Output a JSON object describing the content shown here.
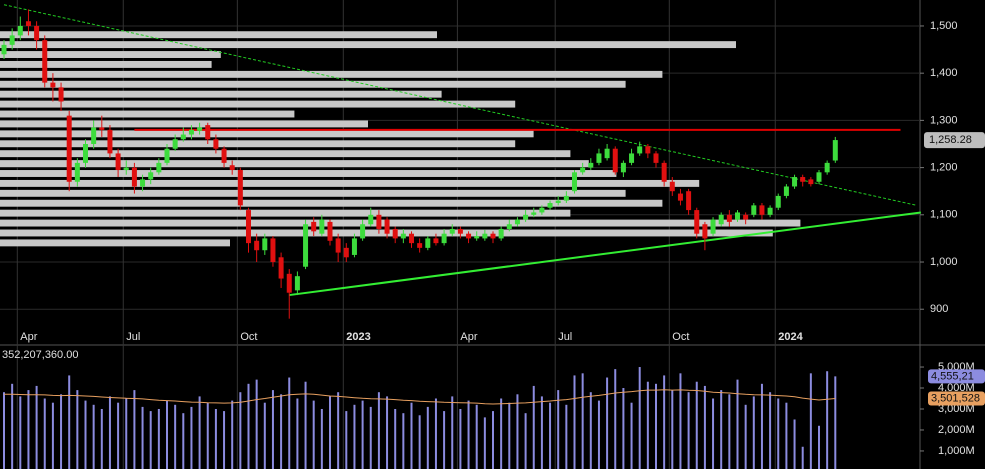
{
  "chart_data": [
    {
      "type": "candlestick",
      "categories": [
        null,
        null,
        "Apr",
        null,
        null,
        null,
        null,
        null,
        null,
        null,
        null,
        null,
        null,
        null,
        null,
        "Jul",
        null,
        null,
        null,
        null,
        null,
        null,
        null,
        null,
        null,
        null,
        null,
        null,
        null,
        "Oct",
        null,
        null,
        null,
        null,
        null,
        null,
        null,
        null,
        null,
        null,
        null,
        null,
        "2023",
        null,
        null,
        null,
        null,
        null,
        null,
        null,
        null,
        null,
        null,
        null,
        null,
        null,
        "Apr",
        null,
        null,
        null,
        null,
        null,
        null,
        null,
        null,
        null,
        null,
        null,
        "Jul",
        null,
        null,
        null,
        null,
        null,
        null,
        null,
        null,
        null,
        null,
        null,
        null,
        null,
        "Oct",
        null,
        null,
        null,
        null,
        null,
        null,
        null,
        null,
        null,
        null,
        null,
        null,
        "2024",
        null,
        null,
        null,
        null,
        null,
        null,
        null
      ],
      "open": [
        1440,
        1460,
        1480,
        1510,
        1500,
        1470,
        1380,
        1370,
        1310,
        1170,
        1210,
        1250,
        1285,
        1280,
        1230,
        1195,
        1200,
        1160,
        1175,
        1190,
        1210,
        1240,
        1260,
        1270,
        1278,
        1290,
        1260,
        1240,
        1205,
        1195,
        1110,
        1045,
        1025,
        1050,
        1010,
        975,
        940,
        990,
        1085,
        1060,
        1085,
        1050,
        1030,
        1015,
        1050,
        1080,
        1100,
        1090,
        1070,
        1050,
        1060,
        1040,
        1030,
        1050,
        1040,
        1060,
        1070,
        1060,
        1050,
        1050,
        1060,
        1050,
        1070,
        1080,
        1090,
        1100,
        1105,
        1115,
        1125,
        1130,
        1150,
        1190,
        1200,
        1210,
        1220,
        1240,
        1190,
        1210,
        1230,
        1245,
        1230,
        1210,
        1170,
        1145,
        1150,
        1110,
        1080,
        1060,
        1080,
        1100,
        1090,
        1100,
        1100,
        1120,
        1100,
        1115,
        1140,
        1160,
        1180,
        1175,
        1170,
        1190,
        1215
      ],
      "high": [
        1470,
        1495,
        1520,
        1535,
        1510,
        1480,
        1400,
        1380,
        1320,
        1220,
        1260,
        1300,
        1310,
        1290,
        1240,
        1215,
        1210,
        1185,
        1200,
        1220,
        1250,
        1270,
        1285,
        1290,
        1295,
        1295,
        1270,
        1245,
        1215,
        1200,
        1115,
        1060,
        1060,
        1055,
        1020,
        985,
        980,
        1090,
        1095,
        1100,
        1090,
        1060,
        1040,
        1060,
        1090,
        1115,
        1110,
        1095,
        1075,
        1070,
        1065,
        1050,
        1055,
        1060,
        1070,
        1080,
        1075,
        1065,
        1065,
        1068,
        1065,
        1075,
        1090,
        1095,
        1110,
        1115,
        1120,
        1130,
        1140,
        1150,
        1195,
        1210,
        1220,
        1240,
        1250,
        1245,
        1215,
        1240,
        1255,
        1250,
        1235,
        1215,
        1180,
        1155,
        1155,
        1115,
        1085,
        1095,
        1105,
        1110,
        1110,
        1105,
        1125,
        1125,
        1120,
        1145,
        1165,
        1185,
        1185,
        1180,
        1195,
        1215,
        1265
      ],
      "low": [
        1430,
        1450,
        1470,
        1480,
        1450,
        1370,
        1340,
        1320,
        1150,
        1160,
        1200,
        1240,
        1265,
        1220,
        1180,
        1185,
        1145,
        1150,
        1165,
        1185,
        1205,
        1235,
        1255,
        1260,
        1270,
        1250,
        1230,
        1200,
        1185,
        1110,
        1020,
        1000,
        1015,
        990,
        945,
        880,
        930,
        985,
        1055,
        1055,
        1035,
        1000,
        1000,
        1010,
        1045,
        1075,
        1060,
        1050,
        1040,
        1040,
        1030,
        1020,
        1025,
        1035,
        1035,
        1055,
        1050,
        1040,
        1045,
        1045,
        1040,
        1045,
        1065,
        1075,
        1085,
        1095,
        1100,
        1110,
        1120,
        1125,
        1145,
        1185,
        1195,
        1205,
        1215,
        1185,
        1180,
        1205,
        1225,
        1220,
        1200,
        1160,
        1140,
        1120,
        1100,
        1050,
        1025,
        1055,
        1075,
        1075,
        1085,
        1080,
        1095,
        1090,
        1095,
        1110,
        1135,
        1155,
        1160,
        1160,
        1165,
        1185,
        1210
      ],
      "close": [
        1460,
        1480,
        1500,
        1500,
        1470,
        1380,
        1370,
        1340,
        1170,
        1210,
        1250,
        1285,
        1280,
        1230,
        1195,
        1200,
        1160,
        1175,
        1190,
        1210,
        1240,
        1260,
        1270,
        1280,
        1285,
        1260,
        1240,
        1210,
        1195,
        1120,
        1040,
        1025,
        1050,
        1000,
        965,
        935,
        970,
        1080,
        1065,
        1090,
        1045,
        1020,
        1010,
        1050,
        1080,
        1100,
        1070,
        1060,
        1050,
        1060,
        1040,
        1030,
        1050,
        1040,
        1060,
        1070,
        1060,
        1050,
        1055,
        1060,
        1050,
        1070,
        1080,
        1090,
        1100,
        1105,
        1115,
        1125,
        1130,
        1140,
        1190,
        1200,
        1210,
        1230,
        1240,
        1190,
        1210,
        1230,
        1245,
        1230,
        1210,
        1170,
        1150,
        1130,
        1110,
        1060,
        1050,
        1090,
        1100,
        1085,
        1105,
        1090,
        1120,
        1100,
        1115,
        1140,
        1160,
        1180,
        1170,
        1165,
        1190,
        1210,
        1258.28
      ],
      "last_label": "1,258.28",
      "color_up": "#3ddc3d",
      "color_down": "#e01010",
      "ylim": [
        856,
        1555
      ],
      "yticks": [
        900,
        {
          "value": 1000,
          "label": "1,000"
        },
        {
          "value": 1100,
          "label": "1,100"
        },
        {
          "value": 1200,
          "label": "1,200"
        },
        {
          "value": 1300,
          "label": "1,300"
        },
        {
          "value": 1400,
          "label": "1,400"
        },
        {
          "value": 1500,
          "label": "1,500"
        }
      ],
      "grid": true,
      "volume_profile": {
        "bins": [
          1030,
          1051,
          1072,
          1093,
          1114,
          1135,
          1156,
          1177,
          1198,
          1219,
          1240,
          1261,
          1282,
          1303,
          1324,
          1345,
          1366,
          1387,
          1408,
          1429,
          1450,
          1471,
          1492
        ],
        "values": [
          250,
          840,
          870,
          620,
          720,
          680,
          760,
          670,
          640,
          620,
          560,
          580,
          400,
          320,
          560,
          480,
          680,
          720,
          230,
          240,
          800,
          475
        ],
        "xlim": [
          0,
          1000
        ],
        "color": "#c8c8c8"
      },
      "lines": [
        {
          "x": [
            0,
            112
          ],
          "y": [
            1545,
            1120
          ],
          "color": "#22cc22",
          "dash": true
        },
        {
          "x": [
            16,
            110
          ],
          "y": [
            1280,
            1280
          ],
          "color": "#e00000",
          "dash": false
        },
        {
          "x": [
            35,
            112.5
          ],
          "y": [
            930,
            1105
          ],
          "color": "#33ee33",
          "dash": false
        }
      ]
    },
    {
      "type": "bar",
      "title": "352,207,360.00",
      "ylim": [
        140,
        6050
      ],
      "yticks": [
        {
          "value": 1000,
          "label": "1,000M"
        },
        {
          "value": 2000,
          "label": "2,000M"
        },
        {
          "value": 3000,
          "label": "3,000M"
        },
        {
          "value": 4000,
          "label": "4,000M"
        },
        {
          "value": 5000,
          "label": "5,000M"
        }
      ],
      "series": [
        {
          "type": "bar",
          "color": "#8c8ce0",
          "last_label": "4,555,21",
          "values": [
            3800,
            4200,
            3600,
            3900,
            4100,
            3500,
            3300,
            3700,
            4600,
            3900,
            3400,
            3200,
            3000,
            3600,
            3300,
            3500,
            3900,
            3100,
            2900,
            3000,
            3400,
            3200,
            2800,
            3100,
            3600,
            3300,
            3000,
            2900,
            3400,
            3800,
            4200,
            4400,
            3300,
            3900,
            3700,
            4500,
            3500,
            4300,
            3400,
            3000,
            3600,
            3800,
            2900,
            3200,
            3400,
            3100,
            3800,
            3600,
            3000,
            2800,
            3300,
            2700,
            3100,
            3500,
            2900,
            3600,
            3000,
            3400,
            3200,
            2600,
            2900,
            3500,
            3300,
            3700,
            2800,
            4100,
            3600,
            3300,
            3900,
            3200,
            4600,
            4700,
            3800,
            3400,
            4500,
            4900,
            4000,
            3300,
            5000,
            4300,
            4200,
            4600,
            3900,
            4700,
            3800,
            4300,
            4100,
            3500,
            3900,
            3700,
            4400,
            3200,
            3600,
            4200,
            3800,
            3500,
            3300,
            2500,
            1200,
            4700,
            2200,
            4800,
            4555.21
          ]
        },
        {
          "type": "line",
          "color": "#e8a060",
          "last_label": "3,501,528",
          "values": [
            3700,
            3700,
            3690,
            3680,
            3680,
            3670,
            3650,
            3640,
            3650,
            3640,
            3620,
            3600,
            3570,
            3550,
            3530,
            3510,
            3500,
            3480,
            3450,
            3420,
            3400,
            3380,
            3350,
            3330,
            3320,
            3300,
            3290,
            3280,
            3290,
            3320,
            3380,
            3450,
            3500,
            3560,
            3620,
            3680,
            3700,
            3720,
            3700,
            3660,
            3620,
            3600,
            3570,
            3540,
            3510,
            3490,
            3480,
            3470,
            3450,
            3420,
            3400,
            3370,
            3350,
            3340,
            3320,
            3310,
            3300,
            3290,
            3280,
            3250,
            3240,
            3250,
            3260,
            3280,
            3290,
            3320,
            3350,
            3380,
            3420,
            3450,
            3500,
            3560,
            3610,
            3650,
            3700,
            3760,
            3800,
            3830,
            3870,
            3900,
            3900,
            3920,
            3900,
            3910,
            3890,
            3880,
            3850,
            3800,
            3780,
            3760,
            3730,
            3700,
            3680,
            3670,
            3660,
            3640,
            3620,
            3580,
            3520,
            3470,
            3430,
            3460,
            3501.528
          ]
        }
      ]
    }
  ]
}
